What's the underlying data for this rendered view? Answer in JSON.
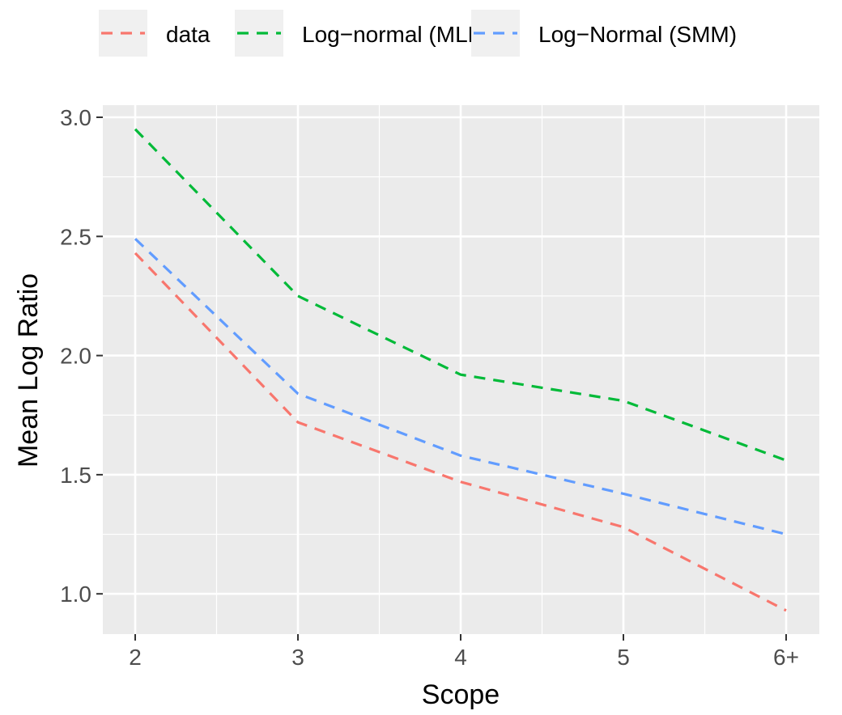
{
  "chart_data": {
    "type": "line",
    "categories": [
      "2",
      "3",
      "4",
      "5",
      "6+"
    ],
    "series": [
      {
        "name": "data",
        "color": "#F8766D",
        "values": [
          2.43,
          1.72,
          1.47,
          1.28,
          0.93
        ]
      },
      {
        "name": "Log−normal (MLE)",
        "color": "#00BA38",
        "values": [
          2.95,
          2.25,
          1.92,
          1.81,
          1.56
        ]
      },
      {
        "name": "Log−Normal (SMM)",
        "color": "#619CFF",
        "values": [
          2.49,
          1.84,
          1.58,
          1.42,
          1.25
        ]
      }
    ],
    "xlabel": "Scope",
    "ylabel": "Mean Log Ratio",
    "yticks": [
      "1.0",
      "1.5",
      "2.0",
      "2.5",
      "3.0"
    ],
    "ylim": [
      0.83,
      3.05
    ],
    "grid": true,
    "legend_position": "top",
    "line_style": "dashed"
  }
}
